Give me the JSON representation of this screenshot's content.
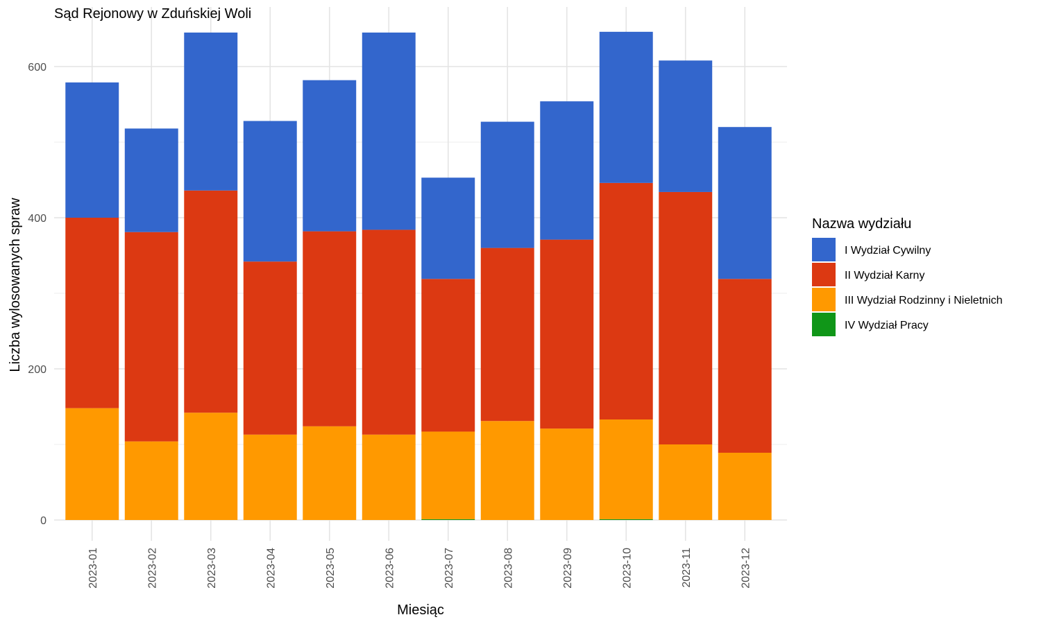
{
  "chart_data": {
    "type": "bar",
    "stacked": true,
    "title": "Sąd Rejonowy w Zduńskiej Woli",
    "xlabel": "Miesiąc",
    "ylabel": "Liczba wylosowanych spraw",
    "ylim": [
      0,
      650
    ],
    "yticks": [
      0,
      200,
      400,
      600
    ],
    "grid": true,
    "legend_position": "right",
    "legend_title": "Nazwa wydziału",
    "categories": [
      "2023-01",
      "2023-02",
      "2023-03",
      "2023-04",
      "2023-05",
      "2023-06",
      "2023-07",
      "2023-08",
      "2023-09",
      "2023-10",
      "2023-11",
      "2023-12"
    ],
    "series": [
      {
        "name": "IV Wydział Pracy",
        "color": "#109618",
        "values": [
          0,
          0,
          0,
          0,
          0,
          0,
          1,
          0,
          0,
          1,
          0,
          0
        ]
      },
      {
        "name": "III Wydział Rodzinny i Nieletnich",
        "color": "#FF9900",
        "values": [
          148,
          104,
          142,
          113,
          124,
          113,
          116,
          131,
          121,
          132,
          100,
          89
        ]
      },
      {
        "name": "II Wydział Karny",
        "color": "#DC3912",
        "values": [
          252,
          277,
          294,
          229,
          258,
          271,
          202,
          229,
          250,
          313,
          334,
          230
        ]
      },
      {
        "name": "I Wydział Cywilny",
        "color": "#3366CC",
        "values": [
          179,
          137,
          209,
          186,
          200,
          261,
          134,
          167,
          183,
          200,
          174,
          201
        ]
      }
    ],
    "legend_order": [
      "I Wydział Cywilny",
      "II Wydział Karny",
      "III Wydział Rodzinny i Nieletnich",
      "IV Wydział Pracy"
    ]
  }
}
